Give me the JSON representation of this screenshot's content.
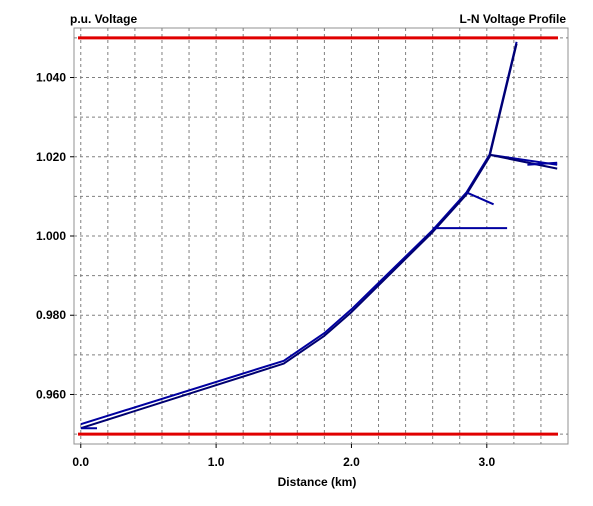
{
  "chart_data": {
    "type": "line",
    "title": "L-N Voltage Profile",
    "ylabel": "p.u. Voltage",
    "xlabel": "Distance (km)",
    "xlim": [
      -0.05,
      3.6
    ],
    "ylim": [
      0.9475,
      1.0525
    ],
    "x_ticks": [
      0.0,
      1.0,
      2.0,
      3.0
    ],
    "x_tick_labels": [
      "0.0",
      "1.0",
      "2.0",
      "3.0"
    ],
    "x_minor_step": 0.2,
    "y_ticks": [
      0.96,
      0.98,
      1.0,
      1.02,
      1.04
    ],
    "y_tick_labels": [
      "0.960",
      "0.980",
      "1.000",
      "1.020",
      "1.040"
    ],
    "y_minor_step": 0.01,
    "grid": true,
    "limit_lines": [
      {
        "y": 1.05,
        "color": "#e00000"
      },
      {
        "y": 0.95,
        "color": "#e00000"
      }
    ],
    "series": [
      {
        "color": "#0000a0",
        "points": [
          [
            0.0,
            0.9525
          ],
          [
            1.5,
            0.9685
          ],
          [
            1.8,
            0.9755
          ],
          [
            2.0,
            0.9815
          ],
          [
            2.6,
            1.0015
          ],
          [
            2.85,
            1.011
          ],
          [
            3.02,
            1.0205
          ],
          [
            3.22,
            1.049
          ]
        ]
      },
      {
        "color": "#000070",
        "points": [
          [
            0.0,
            0.9515
          ],
          [
            1.5,
            0.9678
          ],
          [
            1.8,
            0.9748
          ],
          [
            2.0,
            0.9808
          ],
          [
            2.6,
            1.001
          ],
          [
            2.85,
            1.0105
          ],
          [
            3.02,
            1.02
          ],
          [
            3.22,
            1.0485
          ]
        ]
      },
      {
        "color": "#0000a0",
        "points": [
          [
            2.6,
            1.002
          ],
          [
            3.15,
            1.002
          ]
        ]
      },
      {
        "color": "#0000a0",
        "points": [
          [
            2.85,
            1.011
          ],
          [
            3.05,
            1.008
          ]
        ]
      },
      {
        "color": "#0000a0",
        "points": [
          [
            3.02,
            1.0205
          ],
          [
            3.52,
            1.018
          ]
        ]
      },
      {
        "color": "#000070",
        "points": [
          [
            3.02,
            1.0205
          ],
          [
            3.52,
            1.017
          ]
        ]
      },
      {
        "color": "#0000a0",
        "points": [
          [
            3.3,
            1.018
          ],
          [
            3.52,
            1.0185
          ]
        ]
      },
      {
        "color": "#0000a0",
        "points": [
          [
            0.0,
            0.9515
          ],
          [
            0.12,
            0.9515
          ]
        ]
      }
    ],
    "colors": {
      "grid": "#808080",
      "frame": "#909090",
      "limit": "#e00000",
      "series_main": "#0000a0",
      "series_dark": "#000070"
    }
  }
}
